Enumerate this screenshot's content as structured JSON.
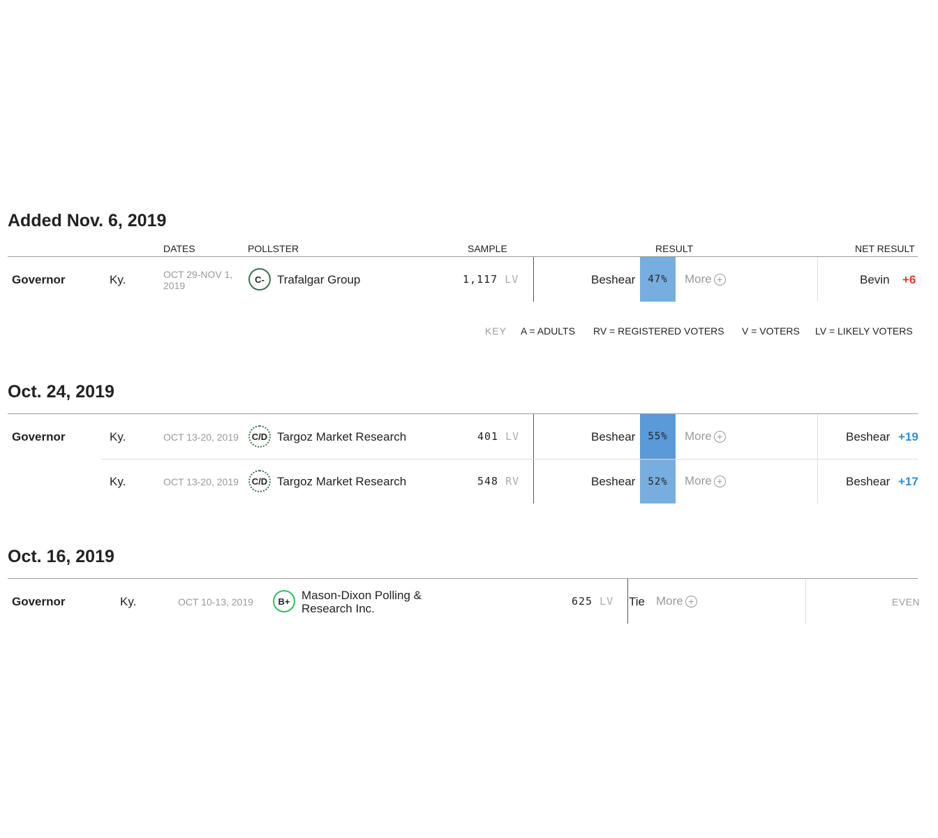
{
  "sections": [
    {
      "heading": "Added Nov. 6, 2019",
      "columns": {
        "dates": "DATES",
        "pollster": "POLLSTER",
        "sample": "SAMPLE",
        "result": "RESULT",
        "net_result": "NET RESULT"
      },
      "rows": [
        {
          "office": "Governor",
          "state": "Ky.",
          "dates": "OCT 29-NOV 1, 2019",
          "grade": "C-",
          "pollster": "Trafalgar Group",
          "sample_size": "1,117",
          "population": "LV",
          "candidate": "Beshear",
          "pct": "47%",
          "more": "More",
          "net_candidate": "Bevin",
          "net_value": "+6"
        }
      ]
    },
    {
      "heading": "Oct. 24, 2019",
      "rows": [
        {
          "office": "Governor",
          "state": "Ky.",
          "dates": "OCT 13-20, 2019",
          "grade": "C/D",
          "pollster": "Targoz Market Research",
          "sample_size": "401",
          "population": "LV",
          "candidate": "Beshear",
          "pct": "55%",
          "more": "More",
          "net_candidate": "Beshear",
          "net_value": "+19"
        },
        {
          "state": "Ky.",
          "dates": "OCT 13-20, 2019",
          "grade": "C/D",
          "pollster": "Targoz Market Research",
          "sample_size": "548",
          "population": "RV",
          "candidate": "Beshear",
          "pct": "52%",
          "more": "More",
          "net_candidate": "Beshear",
          "net_value": "+17"
        }
      ]
    },
    {
      "heading": "Oct. 16, 2019",
      "rows": [
        {
          "office": "Governor",
          "state": "Ky.",
          "dates": "OCT 10-13, 2019",
          "grade": "B+",
          "pollster": "Mason-Dixon Polling & Research Inc.",
          "sample_size": "625",
          "population": "LV",
          "candidate": "Tie",
          "more": "More",
          "net_value": "EVEN"
        }
      ]
    }
  ],
  "key": {
    "label": "KEY",
    "items": [
      "A = ADULTS",
      "RV = REGISTERED VOTERS",
      "V = VOTERS",
      "LV = LIKELY VOTERS"
    ]
  },
  "colors": {
    "net_red": "#e8362a",
    "net_blue": "#2a8fd8",
    "pct_bar": "#77aee0",
    "grade_green": "#2fbf5a",
    "grade_dark": "#3b6e4f"
  },
  "icons": {
    "more": "plus-circle-icon"
  }
}
